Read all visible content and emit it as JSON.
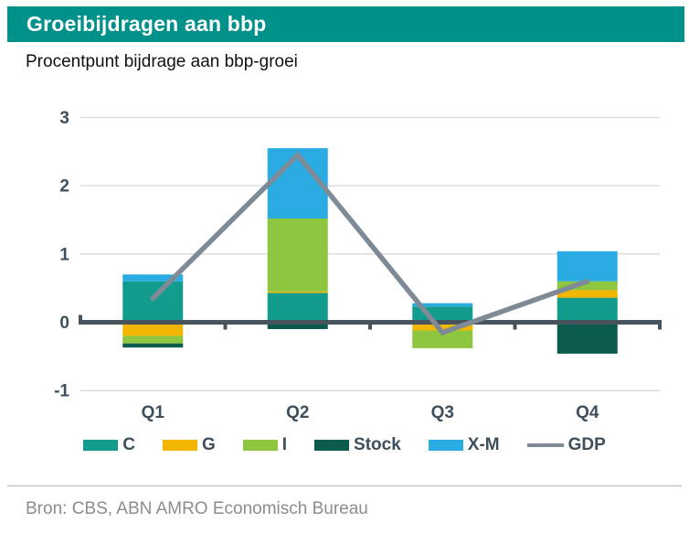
{
  "header": {
    "title": "Groeibijdragen aan bbp",
    "bg_color": "#00928A",
    "text_color": "#ffffff"
  },
  "subtitle": "Procentpunt bijdrage aan bbp-groei",
  "source": "Bron: CBS, ABN AMRO Economisch Bureau",
  "chart_data": {
    "type": "bar",
    "subtype": "stacked-bars-with-line-overlay",
    "title": "Groeibijdragen aan bbp",
    "xlabel": "",
    "ylabel": "Procentpunt bijdrage aan bbp-groei",
    "categories": [
      "Q1",
      "Q2",
      "Q3",
      "Q4"
    ],
    "series": [
      {
        "name": "C",
        "type": "bar",
        "color": "#119C8D",
        "values": [
          0.6,
          0.43,
          0.23,
          0.36
        ]
      },
      {
        "name": "G",
        "type": "bar",
        "color": "#F2B600",
        "values": [
          -0.2,
          0.02,
          -0.12,
          0.11
        ]
      },
      {
        "name": "I",
        "type": "bar",
        "color": "#8EC63F",
        "values": [
          -0.11,
          1.07,
          -0.26,
          0.13
        ]
      },
      {
        "name": "Stock",
        "type": "bar",
        "color": "#0C5B4F",
        "values": [
          -0.06,
          -0.1,
          0.0,
          -0.46
        ]
      },
      {
        "name": "X-M",
        "type": "bar",
        "color": "#2AACE3",
        "values": [
          0.1,
          1.03,
          0.05,
          0.44
        ]
      },
      {
        "name": "GDP",
        "type": "line",
        "color": "#7E8B96",
        "values": [
          0.35,
          2.45,
          -0.15,
          0.6
        ]
      }
    ],
    "yticks": [
      3,
      2,
      1,
      0,
      -1
    ],
    "ylim": [
      -1.35,
      3.45
    ],
    "grid": true,
    "legend_position": "bottom",
    "colors": {
      "axis": "#47545E",
      "gridline": "#D9D9D9",
      "tick_label": "#3E4F5B"
    }
  }
}
